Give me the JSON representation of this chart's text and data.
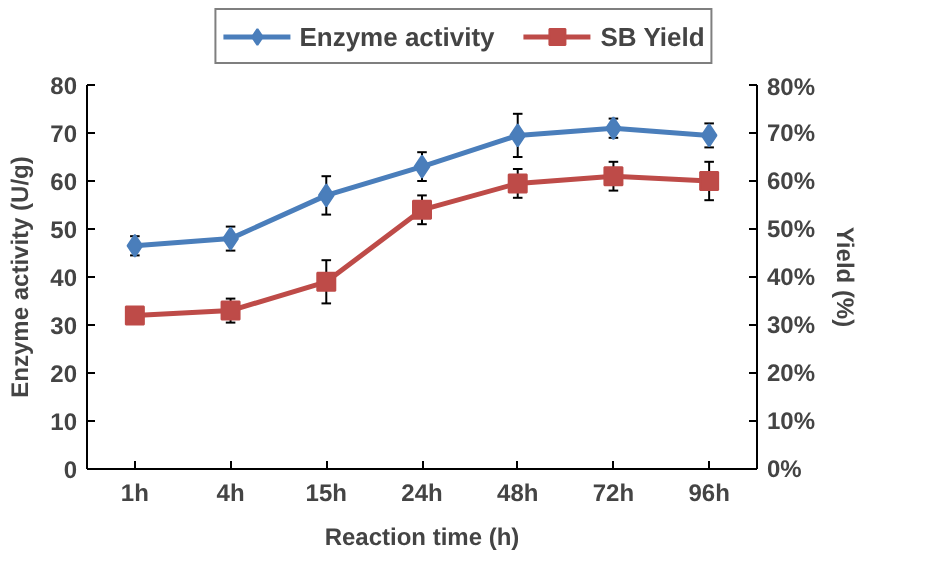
{
  "chart_data": {
    "type": "line",
    "xlabel": "Reaction time (h)",
    "ylabel": "Enzyme activity (U/g)",
    "y2label": "Yield (%)",
    "categories": [
      "1h",
      "4h",
      "15h",
      "24h",
      "48h",
      "72h",
      "96h"
    ],
    "ylim": [
      0,
      80
    ],
    "yticks": [
      0,
      10,
      20,
      30,
      40,
      50,
      60,
      70,
      80
    ],
    "y2lim": [
      0,
      80
    ],
    "y2ticks": [
      {
        "value": 0,
        "label": "0%"
      },
      {
        "value": 10,
        "label": "10%"
      },
      {
        "value": 20,
        "label": "20%"
      },
      {
        "value": 30,
        "label": "30%"
      },
      {
        "value": 40,
        "label": "40%"
      },
      {
        "value": 50,
        "label": "50%"
      },
      {
        "value": 60,
        "label": "60%"
      },
      {
        "value": 70,
        "label": "70%"
      },
      {
        "value": 80,
        "label": "80%"
      }
    ],
    "grid": false,
    "legend": "top",
    "line_style": "solid",
    "series": [
      {
        "name": "Enzyme activity",
        "color": "#4a7ebb",
        "marker": "diamond",
        "values": [
          46.5,
          48,
          57,
          63,
          69.5,
          71,
          69.5
        ],
        "errors": [
          2,
          2.5,
          4,
          3,
          4.5,
          2,
          2.5
        ]
      },
      {
        "name": "SB Yield",
        "color": "#be4b48",
        "marker": "square",
        "axis": "y2",
        "values": [
          32,
          33,
          39,
          54,
          59.5,
          61,
          60
        ],
        "errors": [
          null,
          2.5,
          4.5,
          3,
          3,
          3,
          4
        ]
      }
    ]
  }
}
